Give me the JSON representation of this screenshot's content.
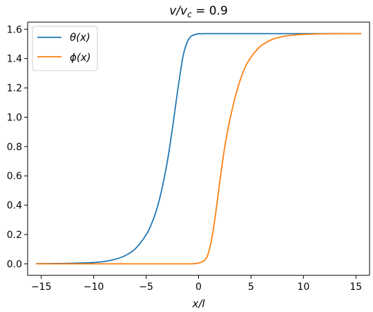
{
  "chart_data": {
    "type": "line",
    "title": "v/v_c = 0.9",
    "title_parts": {
      "v": "v",
      "slash": "/",
      "vc_base": "v",
      "vc_sub": "c",
      "equals": " = 0.9"
    },
    "xlabel": "x/l",
    "ylabel": "",
    "xlim": [
      -16.3,
      16.3
    ],
    "ylim": [
      -0.0785,
      1.6485
    ],
    "x_ticks": [
      -15,
      -10,
      -5,
      0,
      5,
      10,
      15
    ],
    "x_tick_labels": [
      "−15",
      "−10",
      "−5",
      "0",
      "5",
      "10",
      "15"
    ],
    "y_ticks": [
      0.0,
      0.2,
      0.4,
      0.6,
      0.8,
      1.0,
      1.2,
      1.4,
      1.6
    ],
    "y_tick_labels": [
      "0.0",
      "0.2",
      "0.4",
      "0.6",
      "0.8",
      "1.0",
      "1.2",
      "1.4",
      "1.6"
    ],
    "grid": false,
    "legend": "top-left",
    "series": [
      {
        "name": "θ(x)",
        "color": "#1f77b4",
        "x": [
          -15.5,
          -14,
          -12,
          -10,
          -9,
          -8,
          -7,
          -6,
          -5,
          -4.5,
          -4,
          -3.5,
          -3,
          -2.75,
          -2.5,
          -2.25,
          -2,
          -1.75,
          -1.5,
          -1.25,
          -1,
          -0.75,
          -0.5,
          -0.25,
          0,
          0.5,
          1,
          2,
          5,
          10,
          15.5
        ],
        "y": [
          0.001,
          0.002,
          0.004,
          0.009,
          0.016,
          0.03,
          0.056,
          0.105,
          0.198,
          0.27,
          0.37,
          0.51,
          0.69,
          0.8,
          0.92,
          1.05,
          1.18,
          1.3,
          1.41,
          1.48,
          1.525,
          1.55,
          1.56,
          1.566,
          1.569,
          1.57,
          1.57,
          1.57,
          1.57,
          1.57,
          1.57
        ]
      },
      {
        "name": "ϕ(x)",
        "color": "#ff7f0e",
        "x": [
          -15.5,
          -10,
          -5,
          -1,
          0,
          0.5,
          0.75,
          1,
          1.25,
          1.5,
          1.75,
          2,
          2.25,
          2.5,
          2.75,
          3,
          3.5,
          4,
          4.5,
          5,
          5.5,
          6,
          7,
          8,
          9,
          10,
          12,
          14,
          15.5
        ],
        "y": [
          0,
          0,
          0,
          0,
          0.005,
          0.02,
          0.04,
          0.09,
          0.17,
          0.28,
          0.41,
          0.55,
          0.68,
          0.8,
          0.9,
          0.99,
          1.14,
          1.26,
          1.35,
          1.41,
          1.455,
          1.49,
          1.53,
          1.55,
          1.56,
          1.565,
          1.569,
          1.57,
          1.57
        ]
      }
    ]
  }
}
